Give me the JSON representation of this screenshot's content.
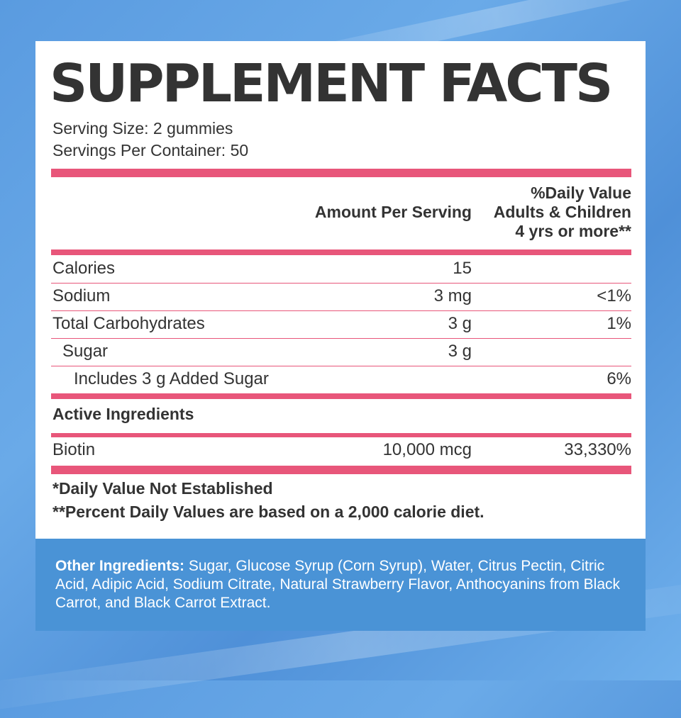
{
  "title": "SUPPLEMENT FACTS",
  "serving_size": "Serving Size: 2 gummies",
  "servings_per_container": "Servings Per Container: 50",
  "header": {
    "amount": "Amount Per Serving",
    "dv_line1": "%Daily Value",
    "dv_line2": "Adults & Children",
    "dv_line3": "4 yrs or more**"
  },
  "rows": [
    {
      "name": "Calories",
      "amount": "15",
      "dv": ""
    },
    {
      "name": "Sodium",
      "amount": "3 mg",
      "dv": "<1%"
    },
    {
      "name": "Total Carbohydrates",
      "amount": "3 g",
      "dv": "1%"
    },
    {
      "name": "Sugar",
      "amount": "3 g",
      "dv": ""
    },
    {
      "name": "Includes 3 g Added Sugar",
      "amount": "",
      "dv": "6%"
    }
  ],
  "active_heading": "Active Ingredients",
  "active": [
    {
      "name": "Biotin",
      "amount": "10,000 mcg",
      "dv": "33,330%"
    }
  ],
  "notes": [
    "*Daily Value Not Established",
    "**Percent Daily Values are based on a 2,000 calorie diet."
  ],
  "other_ingredients": {
    "label": "Other Ingredients:",
    "text": " Sugar, Glucose Syrup (Corn Syrup), Water, Citrus Pectin, Citric Acid, Adipic Acid, Sodium Citrate, Natural Strawberry Flavor, Anthocyanins from Black Carrot, and Black Carrot Extract."
  },
  "colors": {
    "accent_rule": "#e8567a",
    "footer_bg": "#4a93d6",
    "page_bg": "#5a9be0",
    "text": "#333333"
  }
}
